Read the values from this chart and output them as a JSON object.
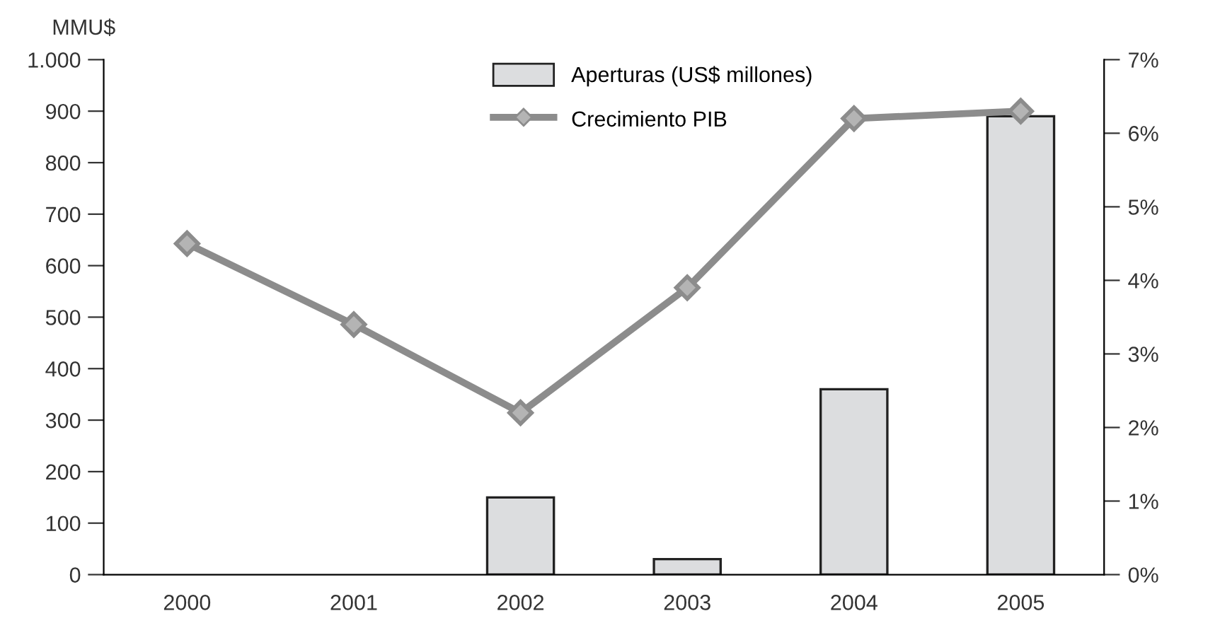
{
  "chart_data": {
    "type": "bar",
    "categories": [
      "2000",
      "2001",
      "2002",
      "2003",
      "2004",
      "2005"
    ],
    "ylabel": "MMU$",
    "series": [
      {
        "name": "Aperturas (US$ millones)",
        "color": "#dcdddf",
        "values": [
          null,
          null,
          150,
          30,
          360,
          890
        ]
      },
      {
        "name": "Crecimiento PIB",
        "type": "line",
        "axis": "y2",
        "color": "#8c8c8c",
        "values": [
          4.5,
          3.4,
          2.2,
          3.9,
          6.2,
          6.3
        ]
      }
    ],
    "ylim": [
      0,
      1000
    ],
    "yticks": [
      0,
      100,
      200,
      300,
      400,
      500,
      600,
      700,
      800,
      900,
      {
        "value": 1000,
        "label": "1.000"
      }
    ],
    "y2lim": [
      0,
      7
    ],
    "y2ticks": [
      {
        "value": 0,
        "label": "0%"
      },
      {
        "value": 1,
        "label": "1%"
      },
      {
        "value": 2,
        "label": "2%"
      },
      {
        "value": 3,
        "label": "3%"
      },
      {
        "value": 4,
        "label": "4%"
      },
      {
        "value": 5,
        "label": "5%"
      },
      {
        "value": 6,
        "label": "6%"
      },
      {
        "value": 7,
        "label": "7%"
      }
    ],
    "marker": "diamond",
    "legend": "top",
    "grid": false
  }
}
